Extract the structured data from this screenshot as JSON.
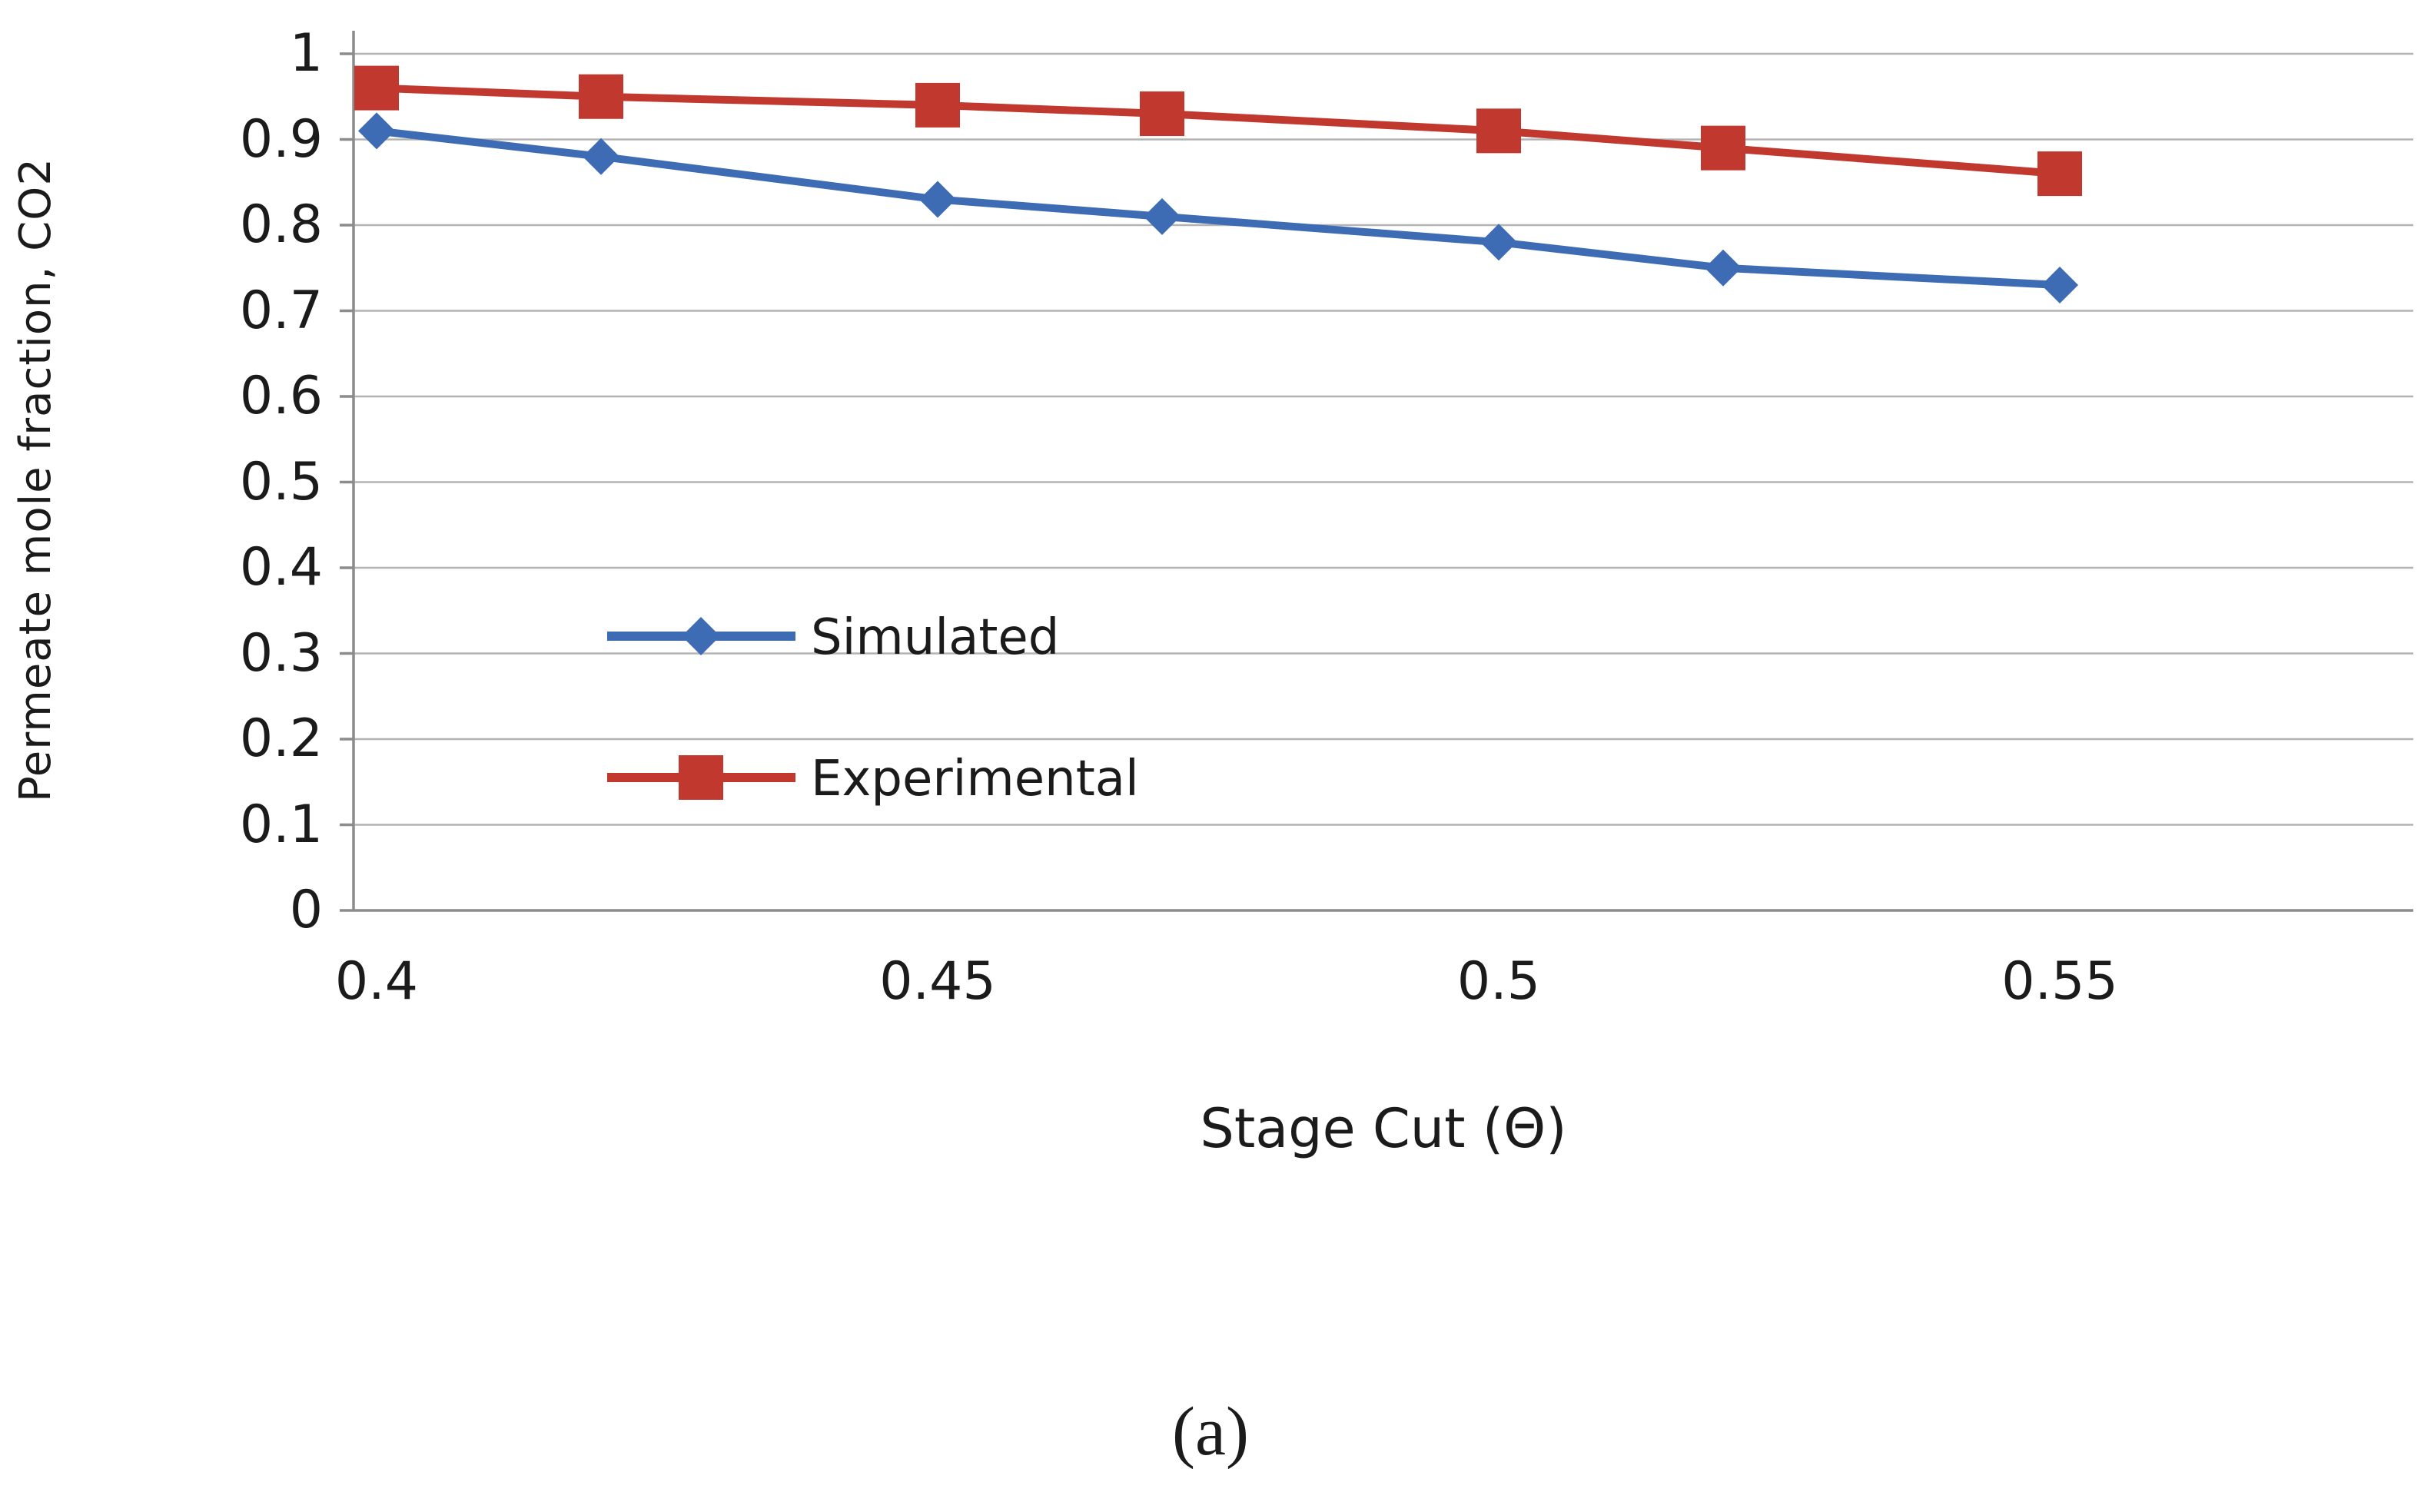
{
  "chart_data": {
    "type": "line",
    "title": "",
    "xlabel": "Stage Cut (Θ)",
    "ylabel": "Permeate mole fraction, CO2",
    "caption": "(a)",
    "x": [
      0.4,
      0.42,
      0.45,
      0.47,
      0.5,
      0.52,
      0.55
    ],
    "series": [
      {
        "name": "Simulated",
        "color": "#3D6CB4",
        "marker": "diamond",
        "values": [
          0.91,
          0.88,
          0.83,
          0.81,
          0.78,
          0.75,
          0.73
        ]
      },
      {
        "name": "Experimental",
        "color": "#C1392E",
        "marker": "square",
        "values": [
          0.96,
          0.95,
          0.94,
          0.93,
          0.91,
          0.89,
          0.86
        ]
      }
    ],
    "x_ticks": [
      0.4,
      0.45,
      0.5,
      0.55
    ],
    "x_tick_labels": [
      "0.4",
      "0.45",
      "0.5",
      "0.55"
    ],
    "y_ticks": [
      0,
      0.1,
      0.2,
      0.3,
      0.4,
      0.5,
      0.6,
      0.7,
      0.8,
      0.9,
      1
    ],
    "y_tick_labels": [
      "0",
      "0.1",
      "0.2",
      "0.3",
      "0.4",
      "0.5",
      "0.6",
      "0.7",
      "0.8",
      "0.9",
      "1"
    ],
    "xlim": [
      0.4,
      0.58
    ],
    "ylim": [
      0,
      1
    ],
    "grid": "horizontal-only",
    "grid_color": "#b3b3b3",
    "axis_color": "#8c8c8c",
    "text_color": "#1b1b1b",
    "legend_position": "inside-middle-left"
  }
}
